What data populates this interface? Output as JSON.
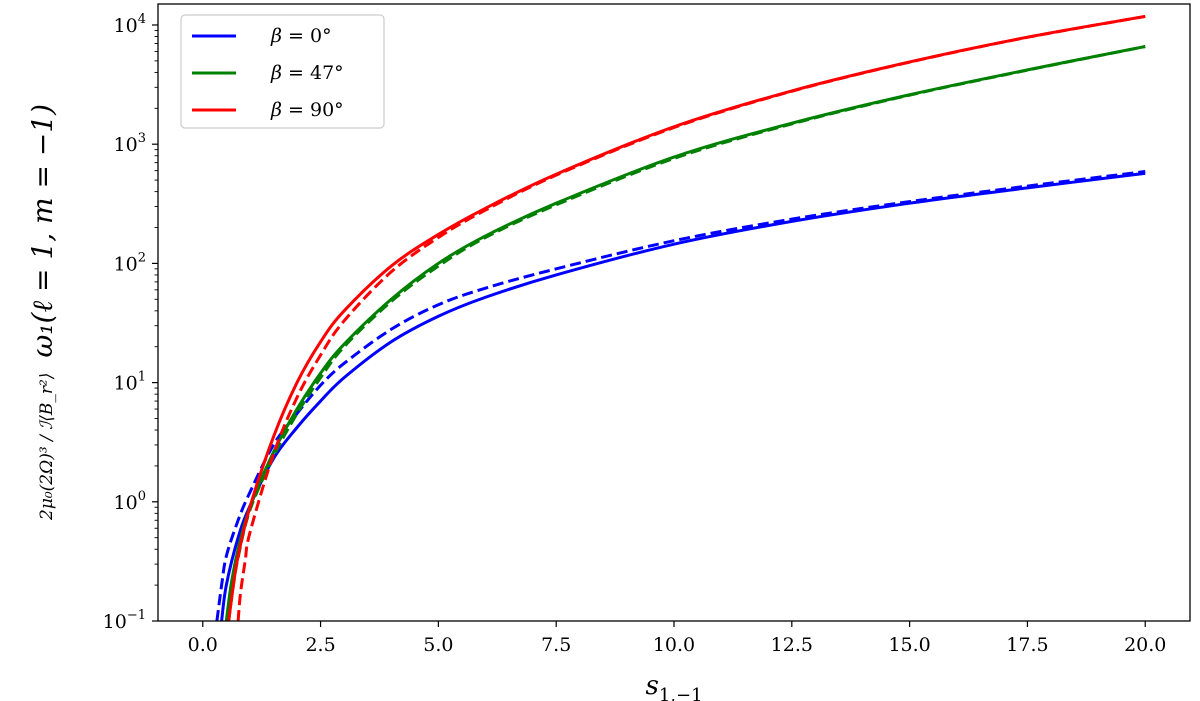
{
  "chart_data": {
    "type": "line",
    "xlabel": "s",
    "xlabel_sub": "1,−1",
    "ylabel_prefix": "2μ₀(2Ω)³ / ℐ⟨B_r²⟩",
    "ylabel_main": "ω₁(ℓ = 1, m = −1)",
    "xlim": [
      -0.95,
      20.95
    ],
    "ylim": [
      0.1,
      15000
    ],
    "yscale": "log",
    "grid": false,
    "legend_position": "top-left",
    "x_ticks": [
      0.0,
      2.5,
      5.0,
      7.5,
      10.0,
      12.5,
      15.0,
      17.5,
      20.0
    ],
    "x_tick_labels": [
      "0.0",
      "2.5",
      "5.0",
      "7.5",
      "10.0",
      "12.5",
      "15.0",
      "17.5",
      "20.0"
    ],
    "y_ticks": [
      0.1,
      1,
      10,
      100,
      1000,
      10000
    ],
    "y_tick_base": "10",
    "y_tick_exponents": [
      "−1",
      "0",
      "1",
      "2",
      "3",
      "4"
    ],
    "series": [
      {
        "name": "β = 0°",
        "legend_lhs": "β",
        "legend_rhs": "0°",
        "color": "#0000ff",
        "solid": {
          "x": [
            0.4,
            0.5,
            0.75,
            1.0,
            1.5,
            2.0,
            2.5,
            3.0,
            4.0,
            5.0,
            6.0,
            7.5,
            10.0,
            12.5,
            15.0,
            17.5,
            20.0
          ],
          "y": [
            0.1,
            0.2,
            0.5,
            0.92,
            2.3,
            4.2,
            7.0,
            11.0,
            22.0,
            36.0,
            52.0,
            80.0,
            145.0,
            225.0,
            320.0,
            430.0,
            570.0
          ]
        },
        "dashed": {
          "x": [
            0.3,
            0.4,
            0.5,
            0.75,
            1.0,
            1.5,
            2.0,
            2.5,
            3.0,
            4.0,
            5.0,
            6.0,
            7.5,
            10.0,
            12.5,
            15.0,
            17.5,
            20.0
          ],
          "y": [
            0.1,
            0.2,
            0.35,
            0.7,
            1.2,
            3.0,
            5.5,
            9.5,
            14.5,
            28.0,
            45.0,
            62.0,
            90.0,
            155.0,
            235.0,
            330.0,
            445.0,
            590.0
          ]
        }
      },
      {
        "name": "β = 47°",
        "legend_lhs": "β",
        "legend_rhs": "47°",
        "color": "#008000",
        "solid": {
          "x": [
            0.5,
            0.6,
            0.75,
            1.0,
            1.5,
            2.0,
            2.5,
            3.0,
            4.0,
            5.0,
            6.0,
            7.5,
            10.0,
            12.5,
            15.0,
            17.5,
            20.0
          ],
          "y": [
            0.1,
            0.2,
            0.4,
            0.9,
            2.6,
            6.0,
            12.0,
            21.0,
            50.0,
            100.0,
            170.0,
            320.0,
            780.0,
            1500.0,
            2600.0,
            4200.0,
            6600.0
          ]
        },
        "dashed": {
          "x": [
            0.55,
            0.65,
            0.75,
            1.0,
            1.5,
            2.0,
            2.5,
            3.0,
            4.0,
            5.0,
            6.0,
            7.5,
            10.0,
            12.5,
            15.0,
            17.5,
            20.0
          ],
          "y": [
            0.1,
            0.2,
            0.34,
            0.85,
            2.4,
            5.5,
            11.0,
            20.0,
            48.0,
            95.0,
            165.0,
            310.0,
            760.0,
            1480.0,
            2580.0,
            4180.0,
            6600.0
          ]
        }
      },
      {
        "name": "β = 90°",
        "legend_lhs": "β",
        "legend_rhs": "90°",
        "color": "#ff0000",
        "solid": {
          "x": [
            0.55,
            0.65,
            0.75,
            1.0,
            1.5,
            2.0,
            2.5,
            3.0,
            4.0,
            5.0,
            6.0,
            7.5,
            10.0,
            12.5,
            15.0,
            17.5,
            20.0
          ],
          "y": [
            0.1,
            0.2,
            0.35,
            0.9,
            3.5,
            10.0,
            22.0,
            40.0,
            95.0,
            175.0,
            290.0,
            560.0,
            1400.0,
            2800.0,
            4900.0,
            7900.0,
            11800.0
          ]
        },
        "dashed": {
          "x": [
            0.75,
            0.8,
            0.9,
            1.0,
            1.5,
            2.0,
            2.5,
            3.0,
            4.0,
            5.0,
            6.0,
            7.5,
            10.0,
            12.5,
            15.0,
            17.5,
            20.0
          ],
          "y": [
            0.1,
            0.17,
            0.32,
            0.55,
            2.5,
            7.5,
            17.0,
            33.0,
            85.0,
            165.0,
            280.0,
            550.0,
            1380.0,
            2780.0,
            4880.0,
            7880.0,
            11800.0
          ]
        }
      }
    ]
  }
}
